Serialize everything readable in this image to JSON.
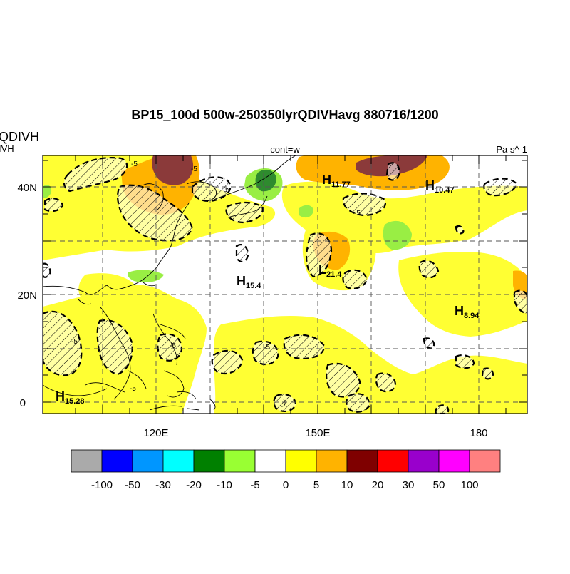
{
  "title": "BP15_100d 500w-250350lyrQDIVHavg  880716/1200",
  "left_label_top": "QDIVH",
  "left_label_sub": "IVH",
  "center_label": "cont=w",
  "units_label": "Pa s^-1",
  "lat_ticks": [
    {
      "label": "40N",
      "value": 40
    },
    {
      "label": "20N",
      "value": 20
    },
    {
      "label": "0",
      "value": 0
    }
  ],
  "lon_ticks": [
    {
      "label": "120E",
      "value": 120
    },
    {
      "label": "150E",
      "value": 150
    },
    {
      "label": "180",
      "value": 180
    }
  ],
  "extremes": [
    {
      "type": "H",
      "value": "11.77"
    },
    {
      "type": "H",
      "value": "10.47"
    },
    {
      "type": "L",
      "value": "21.4"
    },
    {
      "type": "H",
      "value": "15.4"
    },
    {
      "type": "H",
      "value": "8.94"
    },
    {
      "type": "H",
      "value": "15.28"
    }
  ],
  "contour_labels": [
    "-5",
    "-5",
    "-5",
    "-5",
    "-5",
    "-5",
    "-5",
    "-5"
  ],
  "colorbar": {
    "colors": [
      "#aaaaaa",
      "#0000ff",
      "#0096ff",
      "#00ffff",
      "#008000",
      "#99ff33",
      "#ffffff",
      "#ffff00",
      "#ffb300",
      "#7f0000",
      "#ff0000",
      "#9900cc",
      "#ff00ff",
      "#ff8080"
    ],
    "labels": [
      "-100",
      "-50",
      "-30",
      "-20",
      "-10",
      "-5",
      "0",
      "5",
      "10",
      "20",
      "30",
      "50",
      "100"
    ]
  },
  "colors": {
    "yellow": "#ffff33",
    "orange": "#ffb300",
    "darkred": "#8b3a3a",
    "green": "#99ee44",
    "darkgreen": "#2e8b2e"
  }
}
